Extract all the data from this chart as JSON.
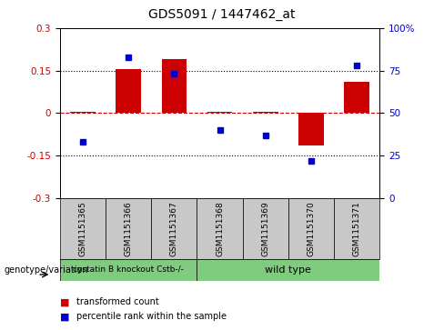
{
  "title": "GDS5091 / 1447462_at",
  "samples": [
    "GSM1151365",
    "GSM1151366",
    "GSM1151367",
    "GSM1151368",
    "GSM1151369",
    "GSM1151370",
    "GSM1151371"
  ],
  "bar_values": [
    0.005,
    0.155,
    0.19,
    0.005,
    0.005,
    -0.115,
    0.11
  ],
  "dot_values": [
    33,
    83,
    73,
    40,
    37,
    22,
    78
  ],
  "ylim_left": [
    -0.3,
    0.3
  ],
  "ylim_right": [
    0,
    100
  ],
  "yticks_left": [
    -0.3,
    -0.15,
    0,
    0.15,
    0.3
  ],
  "yticks_right": [
    0,
    25,
    50,
    75,
    100
  ],
  "hlines": [
    0.15,
    -0.15
  ],
  "bar_color": "#cc0000",
  "dot_color": "#0000cc",
  "zero_line_color": "#cc0000",
  "hline_color": "#000000",
  "group1_label": "cystatin B knockout Cstb-/-",
  "group2_label": "wild type",
  "group_color": "#7FCC7F",
  "group1_indices": [
    0,
    1,
    2
  ],
  "group2_indices": [
    3,
    4,
    5,
    6
  ],
  "legend_bar_label": "transformed count",
  "legend_dot_label": "percentile rank within the sample",
  "genotype_label": "genotype/variation",
  "label_bg": "#c8c8c8",
  "background_color": "#ffffff"
}
